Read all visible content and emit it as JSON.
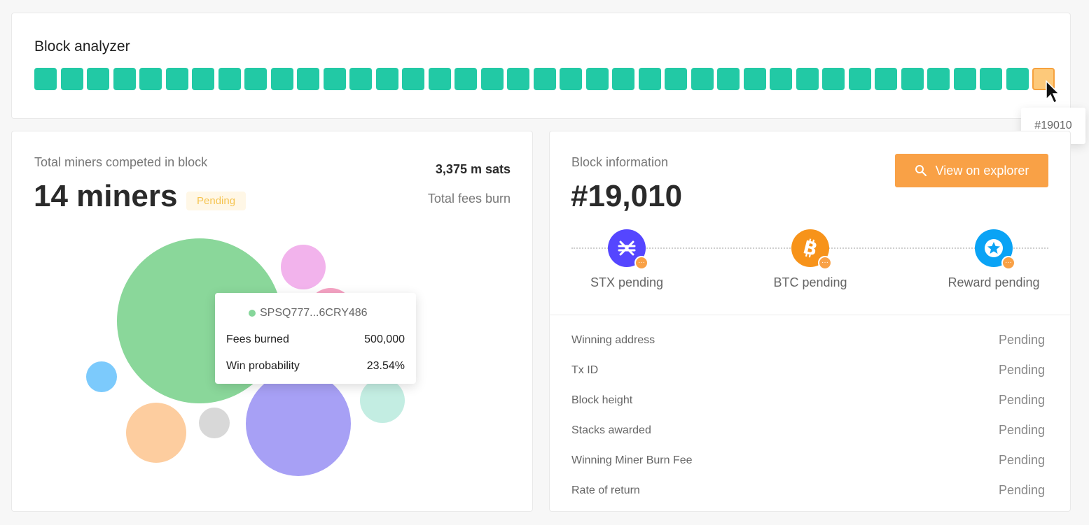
{
  "analyzer": {
    "title": "Block analyzer",
    "blocks_total": 39,
    "selected_tooltip": "#19010",
    "block_color": "#22c9a5",
    "selected_color": "#fdc97a"
  },
  "miners": {
    "subtitle": "Total miners competed in block",
    "count_label": "14 miners",
    "status_badge": "Pending",
    "total_fees": "3,375 m sats",
    "total_fees_label": "Total fees burn",
    "tooltip": {
      "address": "SPSQ777...6CRY486",
      "fees_label": "Fees burned",
      "fees_value": "500,000",
      "prob_label": "Win probability",
      "prob_value": "23.54%"
    }
  },
  "block_info": {
    "subtitle": "Block information",
    "number": "#19,010",
    "explorer_button": "View on explorer",
    "coins": [
      {
        "label": "STX pending",
        "icon": "stx-icon",
        "color": "#5546ff"
      },
      {
        "label": "BTC pending",
        "icon": "bitcoin-icon",
        "color": "#f7931a"
      },
      {
        "label": "Reward pending",
        "icon": "star-icon",
        "color": "#0aa3f5"
      }
    ],
    "rows": [
      {
        "key": "Winning address",
        "value": "Pending"
      },
      {
        "key": "Tx ID",
        "value": "Pending"
      },
      {
        "key": "Block height",
        "value": "Pending"
      },
      {
        "key": "Stacks awarded",
        "value": "Pending"
      },
      {
        "key": "Winning Miner Burn Fee",
        "value": "Pending"
      },
      {
        "key": "Rate of return",
        "value": "Pending"
      }
    ]
  }
}
